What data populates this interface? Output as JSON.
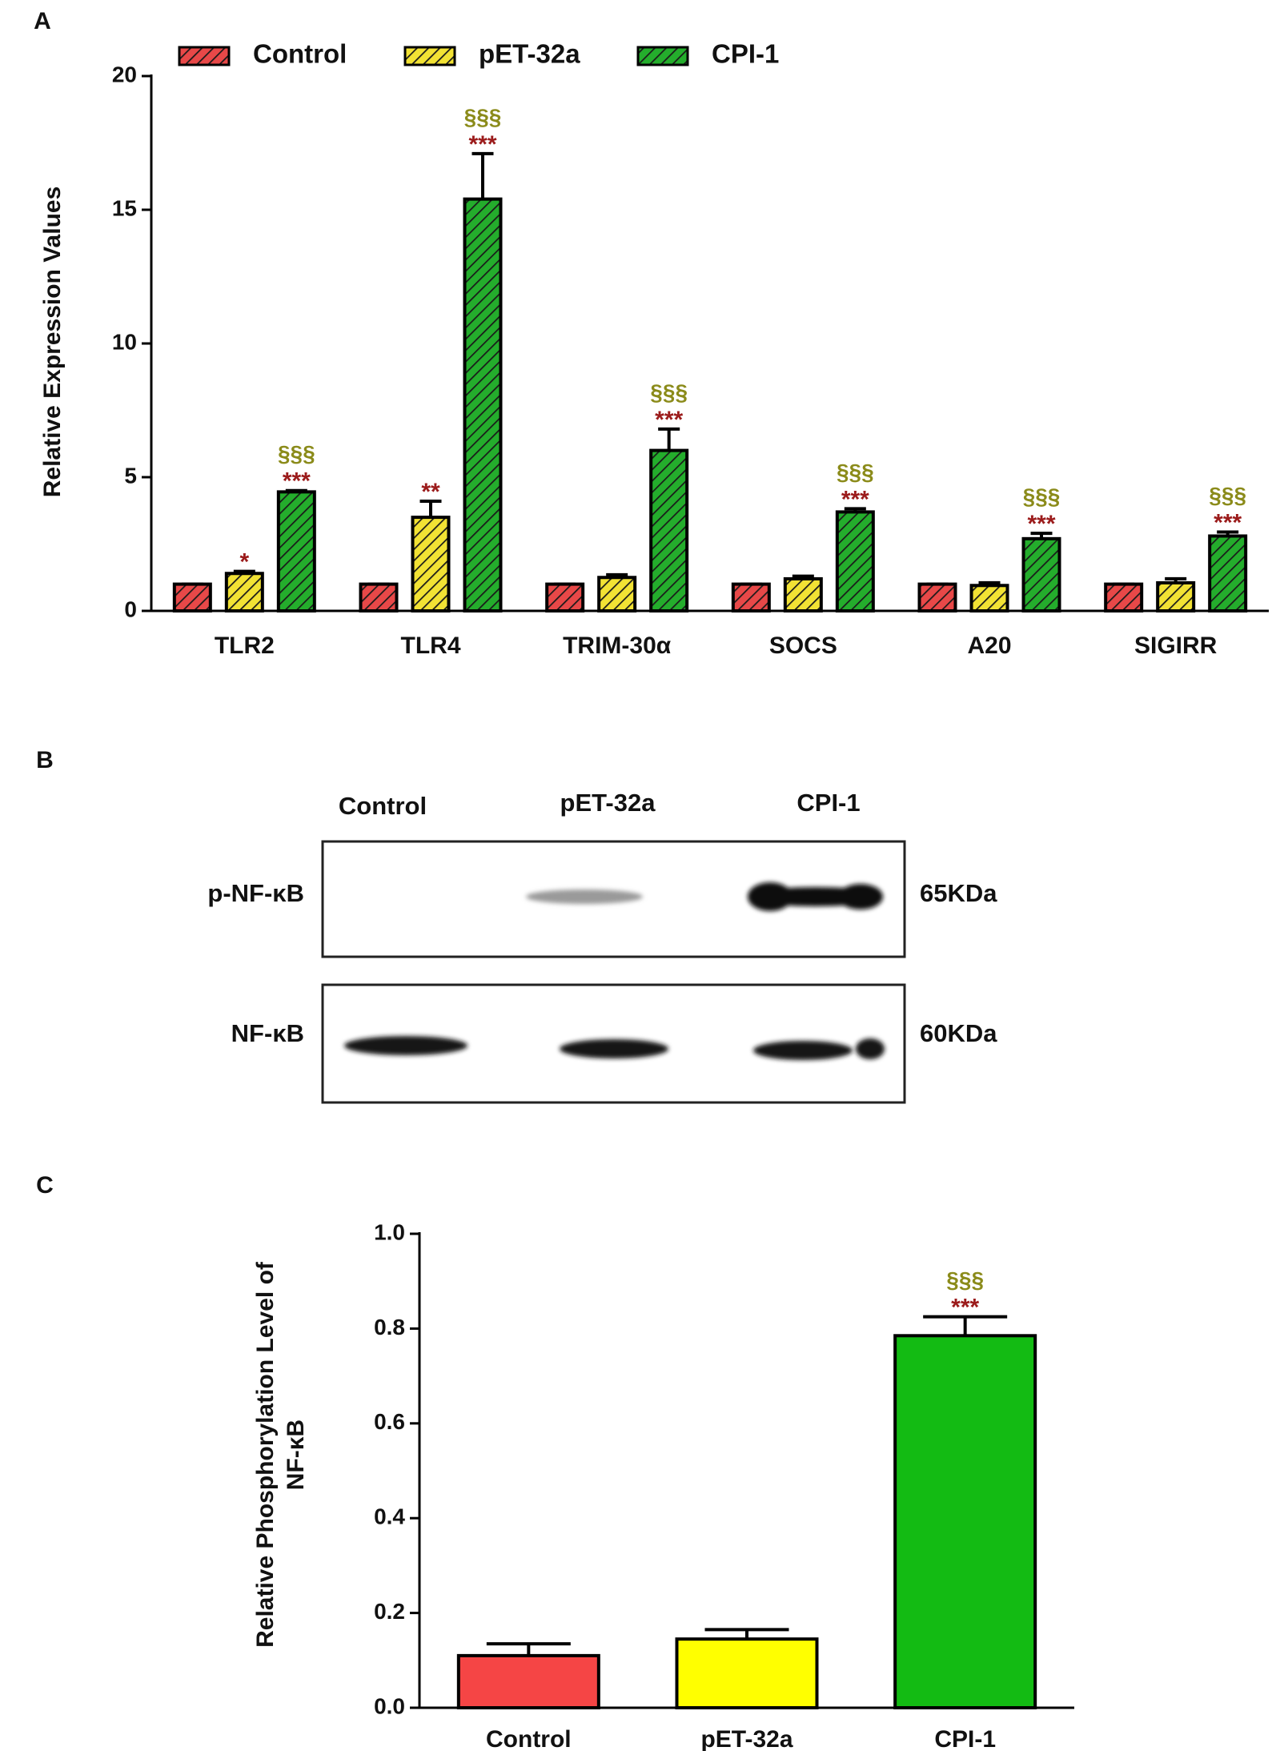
{
  "chart_data": [
    {
      "type": "bar",
      "panel_label": "A",
      "ylabel": "Relative Expression Values",
      "categories": [
        "TLR2",
        "TLR4",
        "TRIM-30α",
        "SOCS",
        "A20",
        "SIGIRR"
      ],
      "series": [
        {
          "name": "Control",
          "color": "#e84848",
          "values": [
            1,
            1,
            1,
            1,
            1,
            1
          ],
          "errors": [
            0,
            0,
            0,
            0,
            0,
            0
          ],
          "stars": [
            null,
            null,
            null,
            null,
            null,
            null
          ],
          "sections": [
            null,
            null,
            null,
            null,
            null,
            null
          ]
        },
        {
          "name": "pET-32a",
          "color": "#f2e234",
          "values": [
            1.4,
            3.5,
            1.25,
            1.2,
            0.95,
            1.05
          ],
          "errors": [
            0.08,
            0.6,
            0.1,
            0.1,
            0.1,
            0.15
          ],
          "stars": [
            "*",
            "**",
            null,
            null,
            null,
            null
          ],
          "sections": [
            null,
            null,
            null,
            null,
            null,
            null
          ]
        },
        {
          "name": "CPI-1",
          "color": "#24ad2c",
          "values": [
            4.45,
            15.4,
            6.0,
            3.7,
            2.7,
            2.8
          ],
          "errors": [
            0.05,
            1.7,
            0.8,
            0.12,
            0.2,
            0.15
          ],
          "stars": [
            "***",
            "***",
            "***",
            "***",
            "***",
            "***"
          ],
          "sections": [
            "§§§",
            "§§§",
            "§§§",
            "§§§",
            "§§§",
            "§§§"
          ]
        }
      ],
      "hatch": true,
      "ylim": [
        0,
        20
      ],
      "yticks": [
        0,
        5,
        10,
        15,
        20
      ]
    },
    {
      "type": "bar",
      "panel_label": "C",
      "ylabel": [
        "Relative Phosphorylation Level of",
        "NF-κB"
      ],
      "categories": [
        "Control",
        "pET-32a",
        "CPI-1"
      ],
      "values": [
        0.11,
        0.145,
        0.785
      ],
      "errors": [
        0.025,
        0.02,
        0.04
      ],
      "colors": [
        "#f54545",
        "#ffff00",
        "#13bb13"
      ],
      "stars": [
        null,
        null,
        "***"
      ],
      "sections": [
        null,
        null,
        "§§§"
      ],
      "hatch": false,
      "ylim": [
        0,
        1
      ],
      "yticks": [
        {
          "value": 0,
          "label": "0.0"
        },
        0.2,
        0.4,
        0.6,
        0.8,
        {
          "value": 1,
          "label": "1.0"
        }
      ]
    }
  ],
  "blot": {
    "panel_label": "B",
    "lanes": [
      "Control",
      "pET-32a",
      "CPI-1"
    ],
    "rows": [
      {
        "label": "p-NF-κB",
        "size": "65KDa"
      },
      {
        "label": "NF-κB",
        "size": "60KDa"
      }
    ]
  }
}
